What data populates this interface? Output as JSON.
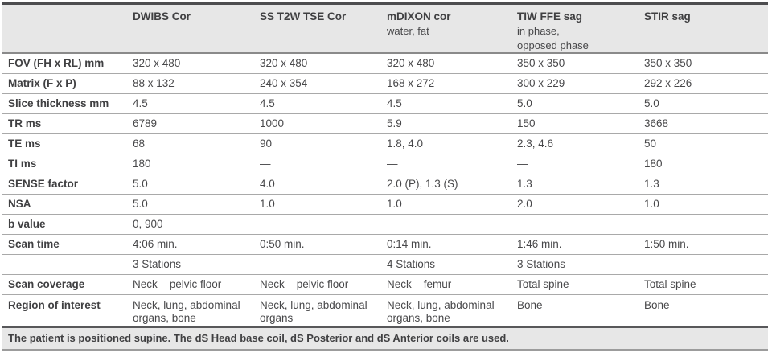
{
  "colors": {
    "band_bg": "#e7e7e7",
    "top_border": "#4d4d4f",
    "row_line": "#a9a9a9",
    "label_text": "#404042",
    "value_text": "#48484a"
  },
  "table": {
    "columns": [
      {
        "title": "",
        "subtitle": ""
      },
      {
        "title": "DWIBS Cor",
        "subtitle": ""
      },
      {
        "title": "SS T2W TSE Cor",
        "subtitle": ""
      },
      {
        "title": "mDIXON cor",
        "subtitle": "water, fat"
      },
      {
        "title": "TIW FFE sag",
        "subtitle": "in phase,\nopposed phase"
      },
      {
        "title": "STIR sag",
        "subtitle": ""
      }
    ],
    "rows": [
      {
        "label": "FOV (FH x RL) mm",
        "values": [
          "320 x 480",
          "320 x 480",
          "320 x 480",
          "350 x 350",
          "350 x 350"
        ]
      },
      {
        "label": "Matrix (F x P)",
        "values": [
          "88 x 132",
          "240 x 354",
          "168 x 272",
          "300 x 229",
          "292 x 226"
        ]
      },
      {
        "label": "Slice thickness mm",
        "values": [
          "4.5",
          "4.5",
          "4.5",
          "5.0",
          "5.0"
        ]
      },
      {
        "label": "TR ms",
        "values": [
          "6789",
          "1000",
          "5.9",
          "150",
          "3668"
        ]
      },
      {
        "label": "TE ms",
        "values": [
          "68",
          "90",
          "1.8, 4.0",
          "2.3, 4.6",
          "50"
        ]
      },
      {
        "label": "TI ms",
        "values": [
          "180",
          "—",
          "—",
          "—",
          "180"
        ]
      },
      {
        "label": "SENSE factor",
        "values": [
          "5.0",
          "4.0",
          "2.0 (P), 1.3 (S)",
          "1.3",
          "1.3"
        ]
      },
      {
        "label": "NSA",
        "values": [
          "5.0",
          "1.0",
          "1.0",
          "2.0",
          "1.0"
        ]
      },
      {
        "label": "b value",
        "values": [
          "0, 900",
          "",
          "",
          "",
          ""
        ]
      },
      {
        "label": "Scan time",
        "values": [
          "4:06 min.",
          "0:50 min.",
          "0:14 min.",
          "1:46 min.",
          "1:50 min."
        ]
      },
      {
        "label": "",
        "values": [
          "3 Stations",
          "",
          "4 Stations",
          "3 Stations",
          ""
        ]
      },
      {
        "label": "Scan coverage",
        "values": [
          "Neck – pelvic floor",
          "Neck – pelvic floor",
          "Neck – femur",
          "Total spine",
          "Total spine"
        ]
      },
      {
        "label": "Region of interest",
        "values": [
          "Neck, lung, abdominal organs, bone",
          "Neck, lung, abdominal organs",
          "Neck, lung, abdominal organs, bone",
          "Bone",
          "Bone"
        ]
      }
    ],
    "footnote": "The patient is positioned supine. The dS Head base coil, dS Posterior and dS Anterior coils are used."
  }
}
